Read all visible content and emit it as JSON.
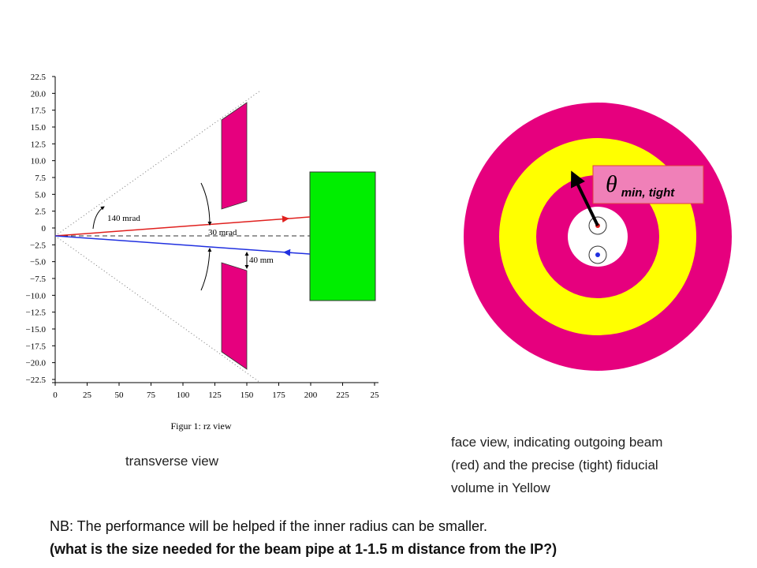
{
  "figure": {
    "y_ticks": [
      "22.5",
      "20.0",
      "17.5",
      "15.0",
      "12.5",
      "10.0",
      "7.5",
      "5.0",
      "2.5",
      "0",
      "−2.5",
      "−5.0",
      "−7.5",
      "−10.0",
      "−12.5",
      "−15.0",
      "−17.5",
      "−20.0",
      "−22.5"
    ],
    "x_ticks": [
      "0",
      "25",
      "50",
      "75",
      "100",
      "125",
      "150",
      "175",
      "200",
      "225",
      "25"
    ],
    "annotations": [
      "140 mrad",
      "30 mrad",
      "40 mm"
    ],
    "caption": "Figur 1: rz view"
  },
  "left_label": "transverse view",
  "face_view": {
    "label_symbol": "θ",
    "label_subscript": "min, tight",
    "description": [
      "face view, indicating outgoing beam",
      "(red) and the precise (tight) fiducial",
      "volume  in Yellow"
    ]
  },
  "notes": [
    "NB: The performance will be helped if the inner radius can be smaller.",
    "(what is the size needed for the beam pipe at 1-1.5 m distance from the IP?)"
  ]
}
